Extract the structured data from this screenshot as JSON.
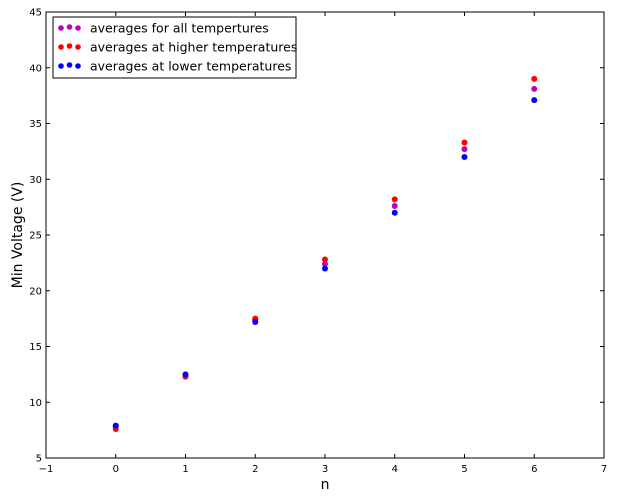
{
  "chart_data": {
    "type": "scatter",
    "xlabel": "n",
    "ylabel": "Min Voltage (V)",
    "xlim": [
      -1,
      7
    ],
    "ylim": [
      5,
      45
    ],
    "x_ticks": [
      "−1",
      "0",
      "1",
      "2",
      "3",
      "4",
      "5",
      "6",
      "7"
    ],
    "y_ticks": [
      "5",
      "10",
      "15",
      "20",
      "25",
      "30",
      "35",
      "40",
      "45"
    ],
    "x_tick_values": [
      -1,
      0,
      1,
      2,
      3,
      4,
      5,
      6,
      7
    ],
    "y_tick_values": [
      5,
      10,
      15,
      20,
      25,
      30,
      35,
      40,
      45
    ],
    "grid": false,
    "legend_position": "top-left",
    "series": [
      {
        "name": "averages for all tempertures",
        "color": "#bf00bf",
        "x": [
          0,
          1,
          2,
          3,
          4,
          5,
          6
        ],
        "y": [
          7.8,
          12.4,
          17.4,
          22.4,
          27.6,
          32.7,
          38.1
        ]
      },
      {
        "name": "averages at higher temperatures",
        "color": "#ff0000",
        "x": [
          0,
          1,
          2,
          3,
          4,
          5,
          6
        ],
        "y": [
          7.6,
          12.3,
          17.5,
          22.8,
          28.2,
          33.3,
          39.0
        ]
      },
      {
        "name": "averages at lower temperatures",
        "color": "#0000ff",
        "x": [
          0,
          1,
          2,
          3,
          4,
          5,
          6
        ],
        "y": [
          7.9,
          12.5,
          17.2,
          22.0,
          27.0,
          32.0,
          37.1
        ]
      }
    ]
  }
}
